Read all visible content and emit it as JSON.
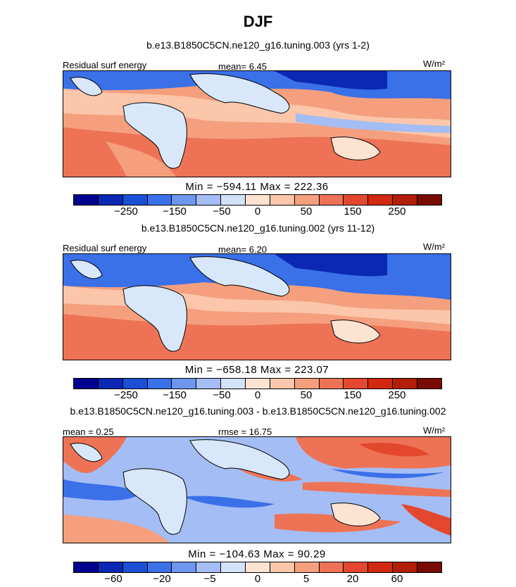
{
  "title": "DJF",
  "colors": {
    "levels": [
      "#00008f",
      "#0a28b4",
      "#1a4fd6",
      "#3a70e8",
      "#6d96ef",
      "#a4bdf4",
      "#d3e2f8",
      "#fde3d2",
      "#fbc6a9",
      "#f59f7e",
      "#ee7356",
      "#e3482e",
      "#d22810",
      "#b31e08",
      "#7a0a04"
    ],
    "land_pale": "#d8e8fa",
    "coast": "#000000"
  },
  "panels": [
    {
      "case": "b.e13.B1850C5CN.ne120_g16.tuning.003 (yrs 1-2)",
      "left_label": "Residual surf energy",
      "center_label": "mean=   6.45",
      "units": "W/m²",
      "minmax": "Min = −594.11 Max = 222.36",
      "ticks": [
        "−250",
        "−150",
        "−50",
        "0",
        "50",
        "150",
        "250"
      ]
    },
    {
      "case": "b.e13.B1850C5CN.ne120_g16.tuning.002 (yrs 11-12)",
      "left_label": "Residual surf energy",
      "center_label": "mean=   6.20",
      "units": "W/m²",
      "minmax": "Min = −658.18 Max = 223.07",
      "ticks": [
        "−250",
        "−150",
        "−50",
        "0",
        "50",
        "150",
        "250"
      ]
    },
    {
      "case": "b.e13.B1850C5CN.ne120_g16.tuning.003 - b.e13.B1850C5CN.ne120_g16.tuning.002",
      "left_label": "mean =    0.25",
      "center_label": "rmse =   16.75",
      "units": "W/m²",
      "minmax": "Min = −104.63 Max =   90.29",
      "ticks": [
        "−60",
        "−20",
        "−5",
        "0",
        "5",
        "20",
        "60"
      ]
    }
  ]
}
